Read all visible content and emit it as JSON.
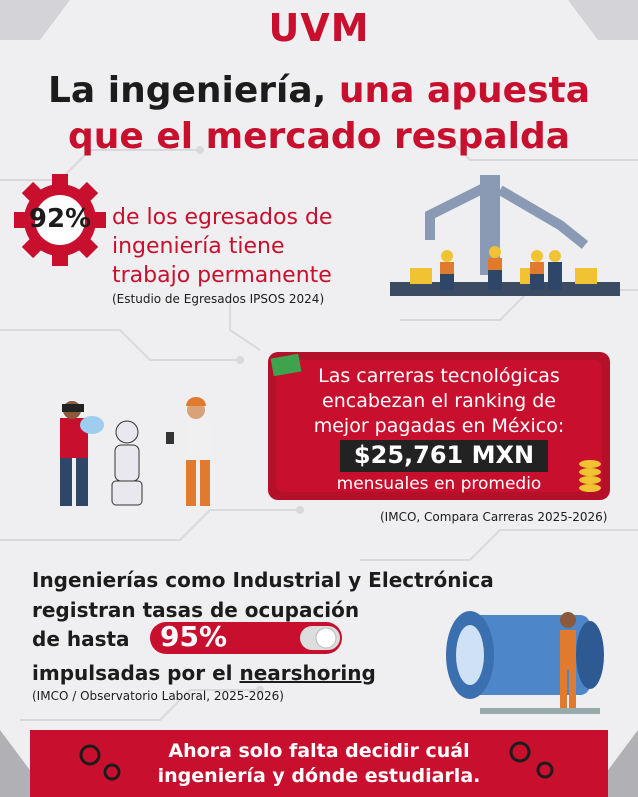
{
  "logo": "UVM",
  "title": {
    "part1": "La ingeniería,",
    "part2": "una apuesta",
    "line2": "que el mercado respalda"
  },
  "stat": {
    "value": "92%",
    "lines": [
      "de los egresados de",
      "ingeniería tiene",
      "trabajo permanente"
    ],
    "source": "(Estudio de Egresados IPSOS 2024)"
  },
  "salary": {
    "lines": [
      "Las carreras tecnológicas",
      "encabezan el ranking de",
      "mejor pagadas en México:"
    ],
    "amount": "$25,761 MXN",
    "period": "mensuales en promedio",
    "source": "(IMCO, Compara Carreras 2025-2026)"
  },
  "occupation": {
    "lines": [
      "Ingenierías como Industrial y Electrónica",
      "registran tasas de ocupación"
    ],
    "prefix": "de hasta",
    "value": "95%",
    "driver_prefix": "impulsadas por el",
    "driver": "nearshoring",
    "source": "(IMCO / Observatorio Laboral, 2025-2026)"
  },
  "footer": {
    "lines": [
      "Ahora solo falta decidir cuál",
      "ingeniería y dónde estudiarla."
    ]
  }
}
